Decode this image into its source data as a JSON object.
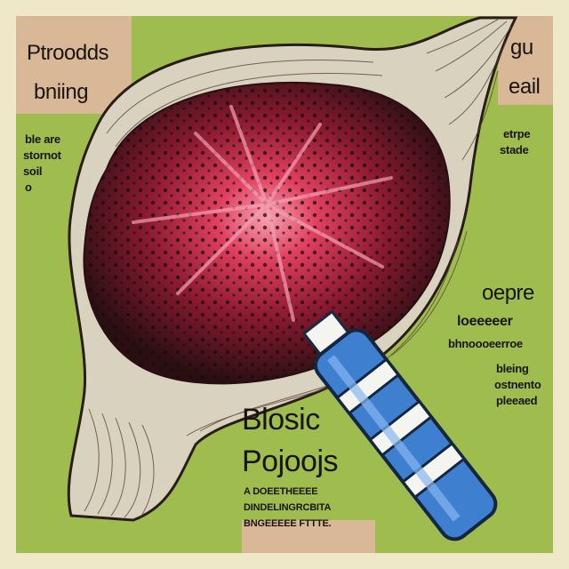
{
  "poster": {
    "colors": {
      "background_cream": "#efe8c8",
      "panel_green": "#9ebd4e",
      "label_tan": "#d8b896",
      "tissue_dark": "#3a1a1a",
      "tissue_red": "#c8304a",
      "tissue_pink": "#f07088",
      "syringe_blue": "#3f7fd0",
      "syringe_white": "#f4f4f0",
      "ink": "#1a1410"
    },
    "labels": {
      "top_left_title": "Ptroodds",
      "top_left_sub": "bniing",
      "left_note": [
        "ble are",
        "stornot",
        "soil",
        "o"
      ],
      "top_right_a": "gu",
      "top_right_b": "eail",
      "right_note": [
        "etrpe",
        "stade"
      ],
      "mid_right_title": "oepre",
      "mid_right_lines": [
        "loeeeeer",
        "bhnoooeerroe"
      ],
      "mid_right_small": [
        "bleing",
        "ostnento",
        "pleeaed"
      ],
      "center_title_1": "Blosic",
      "center_title_2": "Pojoojs",
      "bottom_lines": [
        "A DOEETHEEEE",
        "DINDELINGRCBITA",
        "BNGEEEEE FTTTE."
      ]
    },
    "icons": [
      "tissue-illustration",
      "syringe-icon"
    ]
  }
}
